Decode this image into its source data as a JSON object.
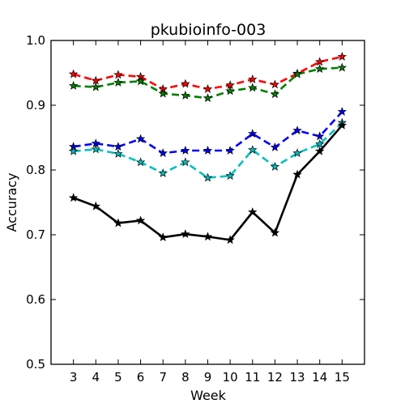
{
  "chart_data": {
    "type": "line",
    "title": "pkubioinfo-003",
    "xlabel": "Week",
    "ylabel": "Accuracy",
    "xlim": [
      2,
      16
    ],
    "ylim": [
      0.5,
      1.0
    ],
    "x": [
      3,
      4,
      5,
      6,
      7,
      8,
      9,
      10,
      11,
      12,
      13,
      14,
      15
    ],
    "xticks": [
      "3",
      "4",
      "5",
      "6",
      "7",
      "8",
      "9",
      "10",
      "11",
      "12",
      "13",
      "14",
      "15"
    ],
    "yticks": [
      "0.5",
      "0.6",
      "0.7",
      "0.8",
      "0.9",
      "1.0"
    ],
    "grid": false,
    "series": [
      {
        "color": "#ff0000",
        "linestyle": "dashed",
        "values": [
          0.948,
          0.938,
          0.947,
          0.944,
          0.925,
          0.933,
          0.925,
          0.931,
          0.94,
          0.932,
          0.949,
          0.967,
          0.975
        ]
      },
      {
        "color": "#007f00",
        "linestyle": "dashed",
        "values": [
          0.93,
          0.928,
          0.935,
          0.937,
          0.918,
          0.915,
          0.911,
          0.922,
          0.927,
          0.917,
          0.948,
          0.956,
          0.958
        ]
      },
      {
        "color": "#0000ff",
        "linestyle": "dashed",
        "values": [
          0.836,
          0.841,
          0.836,
          0.848,
          0.826,
          0.83,
          0.83,
          0.83,
          0.856,
          0.835,
          0.861,
          0.852,
          0.89
        ]
      },
      {
        "color": "#00bfbf",
        "linestyle": "dashed",
        "values": [
          0.829,
          0.832,
          0.825,
          0.812,
          0.795,
          0.812,
          0.788,
          0.791,
          0.831,
          0.805,
          0.826,
          0.84,
          0.873
        ]
      },
      {
        "color": "#000000",
        "linestyle": "solid",
        "values": [
          0.757,
          0.744,
          0.718,
          0.722,
          0.696,
          0.701,
          0.697,
          0.692,
          0.735,
          0.703,
          0.793,
          0.829,
          0.869
        ]
      }
    ]
  }
}
